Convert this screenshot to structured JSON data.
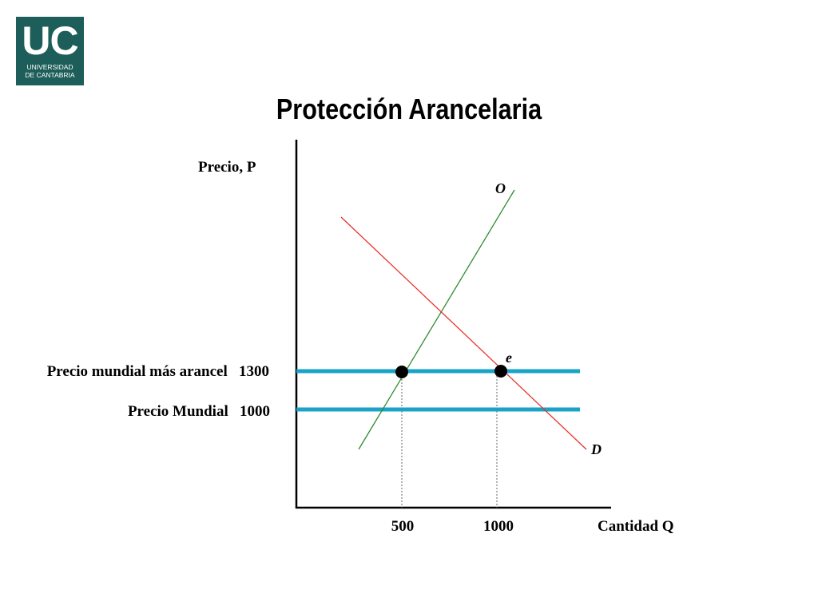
{
  "logo": {
    "initials": "UC",
    "line1": "UNIVERSIDAD",
    "line2": "DE CANTABRIA"
  },
  "title": "Protección Arancelaria",
  "diagram": {
    "y_axis_label": "Precio,  P",
    "x_axis_label": "Cantidad Q",
    "supply_label": "O",
    "demand_label": "D",
    "equilibrium_label": "e",
    "tariff_price_label": "Precio mundial más arancel   1300",
    "world_price_label": "Precio Mundial   1000",
    "x_tick_500": "500",
    "x_tick_1000": "1000",
    "colors": {
      "supply": "#2e8b2e",
      "demand": "#e8342c",
      "price_lines": "#1aa3c8",
      "axes": "#000000"
    }
  }
}
